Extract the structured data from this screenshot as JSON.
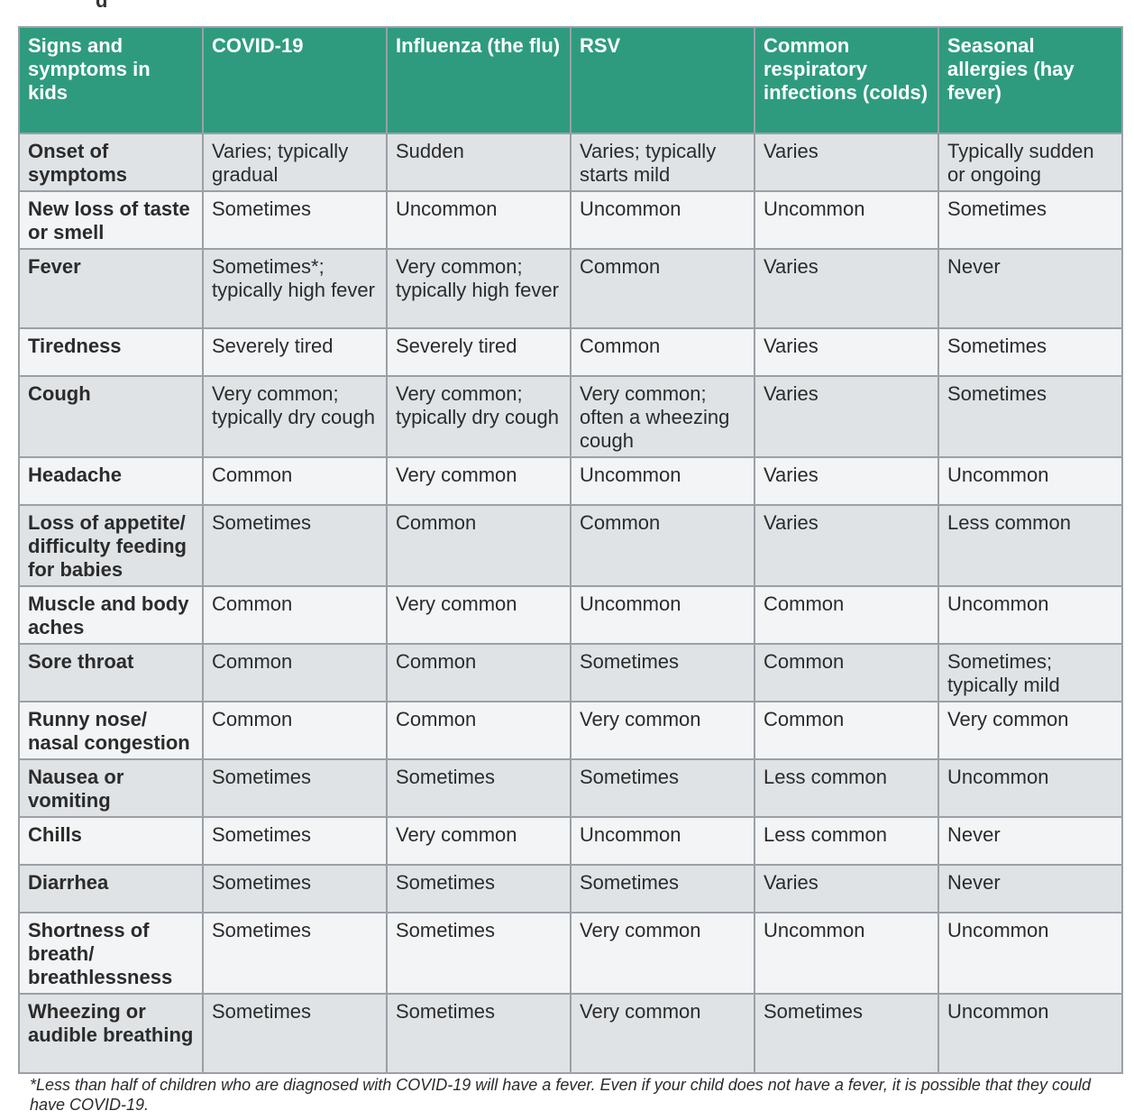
{
  "table": {
    "headers": [
      "Signs and symptoms in kids",
      "COVID-19",
      "Influenza (the flu)",
      "RSV",
      "Common respiratory infections (colds)",
      "Seasonal allergies (hay fever)"
    ],
    "rows": [
      [
        "Onset of symptoms",
        "Varies; typically gradual",
        "Sudden",
        "Varies; typically starts mild",
        "Varies",
        "Typically sudden or ongoing"
      ],
      [
        "New loss of taste or smell",
        "Sometimes",
        "Uncommon",
        "Uncommon",
        "Uncommon",
        "Sometimes"
      ],
      [
        "Fever",
        "Sometimes*; typically high fever",
        "Very common; typically high fever",
        "Common",
        "Varies",
        "Never"
      ],
      [
        "Tiredness",
        "Severely tired",
        "Severely tired",
        "Common",
        "Varies",
        "Sometimes"
      ],
      [
        "Cough",
        "Very common; typically dry cough",
        "Very common; typically dry cough",
        "Very common; often a wheezing cough",
        "Varies",
        "Sometimes"
      ],
      [
        "Headache",
        "Common",
        "Very common",
        "Uncommon",
        "Varies",
        "Uncommon"
      ],
      [
        "Loss of appetite/ difficulty feeding for babies",
        "Sometimes",
        "Common",
        "Common",
        "Varies",
        "Less common"
      ],
      [
        "Muscle and body aches",
        "Common",
        "Very common",
        "Uncommon",
        "Common",
        "Uncommon"
      ],
      [
        "Sore throat",
        "Common",
        "Common",
        "Sometimes",
        "Common",
        "Sometimes; typically mild"
      ],
      [
        "Runny nose/ nasal congestion",
        "Common",
        "Common",
        "Very common",
        "Common",
        "Very common"
      ],
      [
        "Nausea or vomiting",
        "Sometimes",
        "Sometimes",
        "Sometimes",
        "Less common",
        "Uncommon"
      ],
      [
        "Chills",
        "Sometimes",
        "Very common",
        "Uncommon",
        "Less common",
        "Never"
      ],
      [
        "Diarrhea",
        "Sometimes",
        "Sometimes",
        "Sometimes",
        "Varies",
        "Never"
      ],
      [
        "Shortness of breath/ breathlessness",
        "Sometimes",
        "Sometimes",
        "Very common",
        "Uncommon",
        "Uncommon"
      ],
      [
        "Wheezing or audible breathing",
        "Sometimes",
        "Sometimes",
        "Very common",
        "Sometimes",
        "Uncommon"
      ]
    ]
  },
  "footnote": "*Less than half of children who are diagnosed with COVID-19 will have a fever. Even if your child does not have a fever, it is possible that they could have COVID-19.",
  "colors": {
    "header_background": "#2e9b7f",
    "header_text": "#ffffff",
    "row_shade_dark": "#dfe3e6",
    "row_shade_light": "#f2f4f5",
    "border": "#9aa0a6"
  }
}
